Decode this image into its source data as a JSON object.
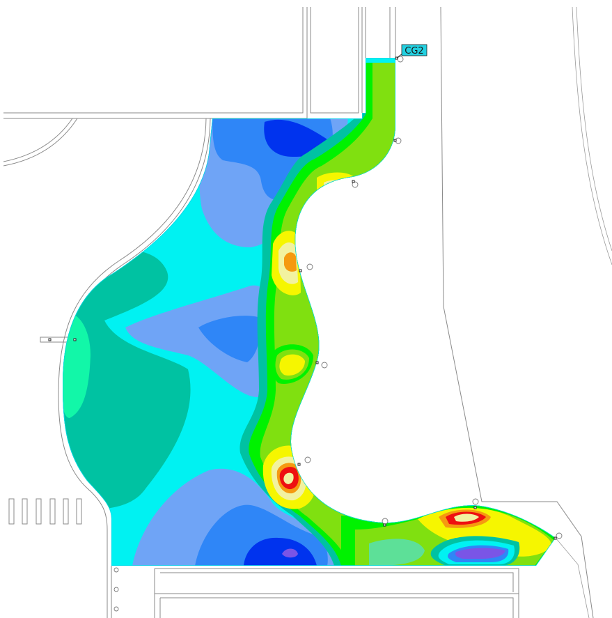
{
  "drawing": {
    "label_tag": "CG2"
  },
  "colors": {
    "deep_blue": "#0033ee",
    "blue": "#2f86f7",
    "light_blue": "#6fa4f6",
    "cyan": "#00f2f2",
    "teal": "#00c2a2",
    "mint": "#12f7a8",
    "green": "#00f200",
    "lime": "#80e010",
    "yellow": "#f6f600",
    "pale_yellow": "#f2f2a0",
    "orange": "#f59a10",
    "red": "#ee1010",
    "purple": "#7a55e6",
    "tag_fill": "#22d0e0",
    "linework": "#8a8a8a"
  }
}
